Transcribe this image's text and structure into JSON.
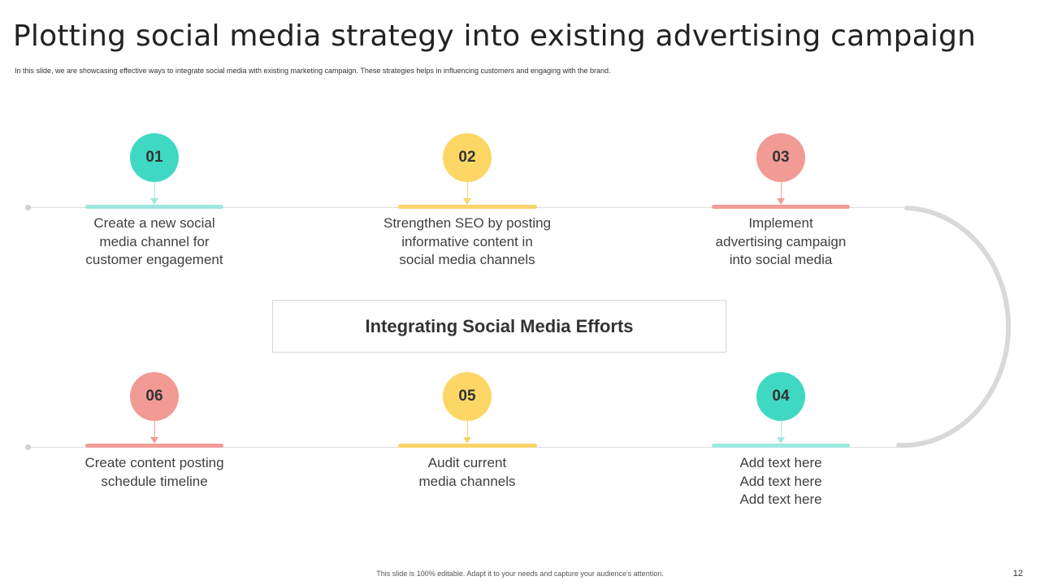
{
  "title": "Plotting social media strategy into existing advertising campaign",
  "subtitle": "In this slide, we are showcasing effective ways to integrate social media with existing marketing campaign. These strategies helps in influencing customers and engaging with the brand.",
  "center_label": "Integrating Social Media Efforts",
  "colors": {
    "teal": "#3fd9c3",
    "yellow": "#fcd765",
    "pink": "#f29a94",
    "teal_light": "#9ee8de",
    "yellow_bar": "#fad46a",
    "pink_bar": "#f19d98"
  },
  "steps": [
    {
      "number": "01",
      "text": "Create a new social\nmedia channel for\ncustomer engagement",
      "color": "teal"
    },
    {
      "number": "02",
      "text": "Strengthen SEO by posting\ninformative content in\nsocial media channels",
      "color": "yellow"
    },
    {
      "number": "03",
      "text": "Implement\nadvertising campaign\ninto social media",
      "color": "pink"
    },
    {
      "number": "04",
      "text": "Add text here\nAdd text here\nAdd text here",
      "color": "teal"
    },
    {
      "number": "05",
      "text": "Audit current\nmedia channels",
      "color": "yellow"
    },
    {
      "number": "06",
      "text": "Create content posting\nschedule timeline",
      "color": "pink"
    }
  ],
  "footer": "This slide is 100% editable. Adapt it to your needs and capture your audience's attention.",
  "page_number": "12"
}
